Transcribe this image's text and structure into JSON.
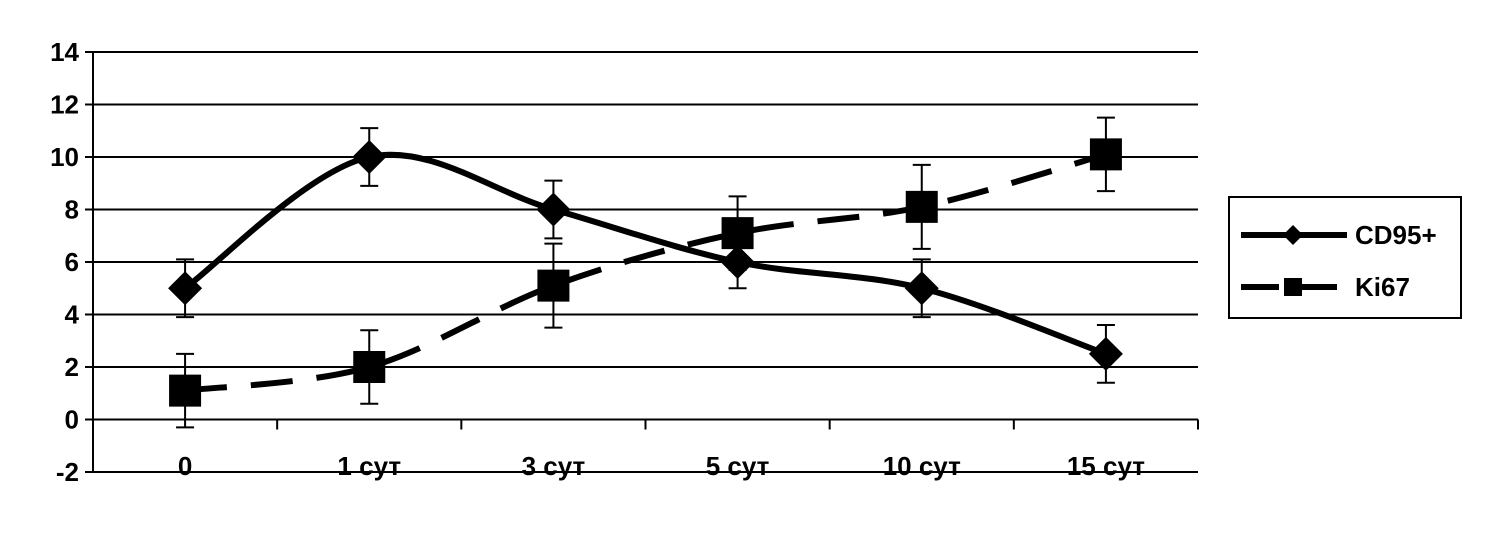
{
  "chart_data": {
    "type": "line",
    "categories": [
      "0",
      "1 сут",
      "3 сут",
      "5 сут",
      "10 сут",
      "15 сут"
    ],
    "ylim": [
      -2,
      14
    ],
    "yticks": [
      "-2",
      "0",
      "2",
      "4",
      "6",
      "8",
      "10",
      "12",
      "14"
    ],
    "grid": true,
    "legend_position": "right",
    "smooth": true,
    "series": [
      {
        "name": "CD95+",
        "values": [
          5,
          10,
          8,
          6,
          5,
          2.5
        ],
        "error": [
          1.1,
          1.1,
          1.1,
          1.0,
          1.1,
          1.1
        ],
        "marker": "diamond",
        "line_style": "solid",
        "color": "#000000"
      },
      {
        "name": "Ki67",
        "values": [
          1.1,
          2.0,
          5.1,
          7.1,
          8.1,
          10.1
        ],
        "error": [
          1.4,
          1.4,
          1.6,
          1.4,
          1.6,
          1.4
        ],
        "marker": "square",
        "line_style": "dashed",
        "color": "#000000"
      }
    ]
  }
}
